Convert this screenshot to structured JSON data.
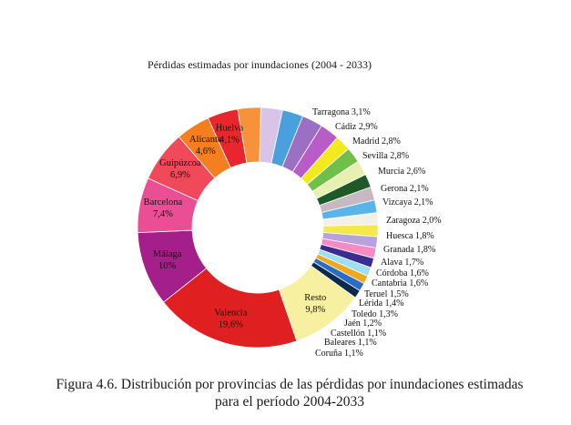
{
  "chart_data": {
    "type": "pie",
    "title": "Pérdidas estimadas por inundaciones (2004 - 2033)",
    "donut": true,
    "slices": [
      {
        "label": "Valencia",
        "value_text": "19,6%",
        "value": 19.6,
        "color": "#e02020",
        "label_pos": "inside"
      },
      {
        "label": "Málaga",
        "value_text": "10%",
        "value": 10.0,
        "color": "#a51f8a",
        "label_pos": "inside"
      },
      {
        "label": "Barcelona",
        "value_text": "7,4%",
        "value": 7.4,
        "color": "#ea4f95",
        "label_pos": "inside"
      },
      {
        "label": "Guipúzcoa",
        "value_text": "6,9%",
        "value": 6.9,
        "color": "#f04a5a",
        "label_pos": "inside"
      },
      {
        "label": "Alicante",
        "value_text": "4,6%",
        "value": 4.6,
        "color": "#f57f1f",
        "label_pos": "inside"
      },
      {
        "label": "Huelva",
        "value_text": "4,1%",
        "value": 4.1,
        "color": "#e8262d",
        "label_pos": "inside"
      },
      {
        "label": "Tarragona",
        "value_text": "3,1%",
        "value": 3.1,
        "color": "#f7923a",
        "label_pos": "outside"
      },
      {
        "label": "Cádiz",
        "value_text": "2,9%",
        "value": 2.9,
        "color": "#d9c3e6",
        "label_pos": "outside"
      },
      {
        "label": "Madrid",
        "value_text": "2,8%",
        "value": 2.8,
        "color": "#4aa0dc",
        "label_pos": "outside"
      },
      {
        "label": "Sevilla",
        "value_text": "2,8%",
        "value": 2.8,
        "color": "#9b6fc4",
        "label_pos": "outside"
      },
      {
        "label": "Murcia",
        "value_text": "2,6%",
        "value": 2.6,
        "color": "#b95cc8",
        "label_pos": "outside"
      },
      {
        "label": "Gerona",
        "value_text": "2,1%",
        "value": 2.1,
        "color": "#f2ea1c",
        "label_pos": "outside"
      },
      {
        "label": "Vizcaya",
        "value_text": "2,1%",
        "value": 2.1,
        "color": "#6fbf4a",
        "label_pos": "outside"
      },
      {
        "label": "Zaragoza",
        "value_text": "2,0%",
        "value": 2.0,
        "color": "#e8f0b0",
        "label_pos": "outside"
      },
      {
        "label": "Huesca",
        "value_text": "1,8%",
        "value": 1.8,
        "color": "#1e5a28",
        "label_pos": "outside"
      },
      {
        "label": "Granada",
        "value_text": "1,8%",
        "value": 1.8,
        "color": "#c7b9c2",
        "label_pos": "outside"
      },
      {
        "label": "Alava",
        "value_text": "1,7%",
        "value": 1.7,
        "color": "#5ab4e8",
        "label_pos": "outside"
      },
      {
        "label": "Córdoba",
        "value_text": "1,6%",
        "value": 1.6,
        "color": "#f3f0e8",
        "label_pos": "outside"
      },
      {
        "label": "Cantabria",
        "value_text": "1,6%",
        "value": 1.6,
        "color": "#f4e94a",
        "label_pos": "outside"
      },
      {
        "label": "Teruel",
        "value_text": "1,5%",
        "value": 1.5,
        "color": "#b7a2dc",
        "label_pos": "outside"
      },
      {
        "label": "Lérida",
        "value_text": "1,4%",
        "value": 1.4,
        "color": "#f58ac4",
        "label_pos": "outside"
      },
      {
        "label": "Toledo",
        "value_text": "1,3%",
        "value": 1.3,
        "color": "#3b2c8f",
        "label_pos": "outside"
      },
      {
        "label": "Jaén",
        "value_text": "1,2%",
        "value": 1.2,
        "color": "#9edff2",
        "label_pos": "outside"
      },
      {
        "label": "Castellón",
        "value_text": "1,1%",
        "value": 1.1,
        "color": "#f0a820",
        "label_pos": "outside"
      },
      {
        "label": "Baleares",
        "value_text": "1,1%",
        "value": 1.1,
        "color": "#2a6dc8",
        "label_pos": "outside"
      },
      {
        "label": "Coruña",
        "value_text": "1,1%",
        "value": 1.1,
        "color": "#0e2a4a",
        "label_pos": "outside"
      },
      {
        "label": "Resto",
        "value_text": "9,8%",
        "value": 9.8,
        "color": "#f6f0a0",
        "label_pos": "inside"
      }
    ]
  },
  "caption": {
    "line1": "Figura 4.6. Distribución por provincias de las pérdidas por inundaciones estimadas",
    "line2": "para el período 2004-2033"
  }
}
